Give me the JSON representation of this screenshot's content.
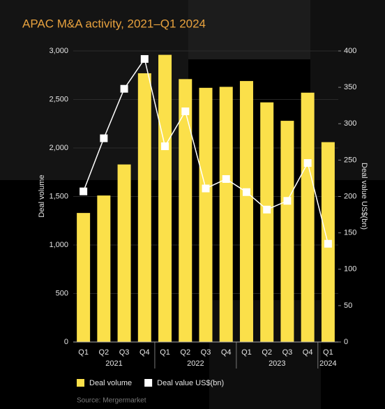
{
  "chart_data": {
    "type": "bar-line",
    "title": "APAC M&A activity, 2021–Q1 2024",
    "groups": [
      {
        "name": "2021",
        "categories": [
          "Q1",
          "Q2",
          "Q3",
          "Q4"
        ]
      },
      {
        "name": "2022",
        "categories": [
          "Q1",
          "Q2",
          "Q3",
          "Q4"
        ]
      },
      {
        "name": "2023",
        "categories": [
          "Q1",
          "Q2",
          "Q3",
          "Q4"
        ]
      },
      {
        "name": "2024",
        "categories": [
          "Q1"
        ]
      }
    ],
    "series": [
      {
        "name": "Deal volume",
        "type": "bar",
        "axis": "y",
        "color": "#fbe04a",
        "values": [
          1330,
          1510,
          1830,
          2770,
          2960,
          2710,
          2620,
          2630,
          2690,
          2470,
          2280,
          2570,
          2060
        ]
      },
      {
        "name": "Deal value US$(bn)",
        "type": "line",
        "axis": "y2",
        "color": "#ffffff",
        "values": [
          207,
          280,
          348,
          389,
          269,
          317,
          211,
          224,
          206,
          182,
          194,
          246,
          135
        ]
      }
    ],
    "ylabel": "Deal volume",
    "y2label": "Deal value US$(bn)",
    "ylim": [
      0,
      3000
    ],
    "yticks": [
      0,
      500,
      {
        "value": 1000,
        "label": "1,000"
      },
      {
        "value": 1500,
        "label": "1,500"
      },
      {
        "value": 2000,
        "label": "2,000"
      },
      {
        "value": 2500,
        "label": "2,500"
      },
      {
        "value": 3000,
        "label": "3,000"
      }
    ],
    "y2lim": [
      0,
      400
    ],
    "y2ticks": [
      0,
      50,
      100,
      150,
      200,
      250,
      300,
      350,
      400
    ],
    "grid": true,
    "legend": "bottom-left",
    "source": "Source: Mergermarket"
  }
}
